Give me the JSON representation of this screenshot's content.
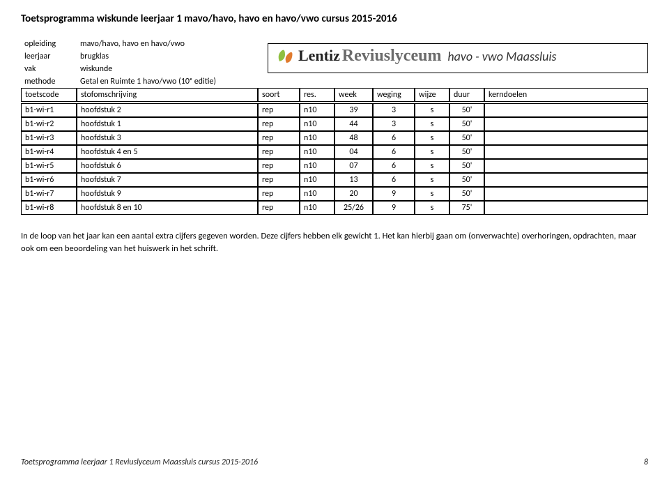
{
  "doc_title": "Toetsprogramma wiskunde leerjaar 1 mavo/havo, havo en havo/vwo cursus 2015-2016",
  "meta": {
    "opleiding_label": "opleiding",
    "opleiding_value": "mavo/havo, havo en havo/vwo",
    "leerjaar_label": "leerjaar",
    "leerjaar_value": "brugklas",
    "vak_label": "vak",
    "vak_value": "wiskunde",
    "methode_label": "methode",
    "methode_value": "Getal en Ruimte 1 havo/vwo (10ᵉ editie)"
  },
  "brand": {
    "word1": "Lentiz",
    "word2": "Reviuslyceum",
    "sub": "havo - vwo Maassluis"
  },
  "table": {
    "headers": {
      "toetscode": "toetscode",
      "stofomschrijving": "stofomschrijving",
      "soort": "soort",
      "res": "res.",
      "week": "week",
      "weging": "weging",
      "wijze": "wijze",
      "duur": "duur",
      "kerndoelen": "kerndoelen"
    },
    "rows": [
      {
        "code": "b1-wi-r1",
        "desc": "hoofdstuk 2",
        "soort": "rep",
        "res": "n10",
        "week": "39",
        "weging": "3",
        "wijze": "s",
        "duur": "50'",
        "kd": ""
      },
      {
        "code": "b1-wi-r2",
        "desc": "hoofdstuk 1",
        "soort": "rep",
        "res": "n10",
        "week": "44",
        "weging": "3",
        "wijze": "s",
        "duur": "50'",
        "kd": ""
      },
      {
        "code": "b1-wi-r3",
        "desc": "hoofdstuk 3",
        "soort": "rep",
        "res": "n10",
        "week": "48",
        "weging": "6",
        "wijze": "s",
        "duur": "50'",
        "kd": ""
      },
      {
        "code": "b1-wi-r4",
        "desc": "hoofdstuk 4 en 5",
        "soort": "rep",
        "res": "n10",
        "week": "04",
        "weging": "6",
        "wijze": "s",
        "duur": "50'",
        "kd": ""
      },
      {
        "code": "b1-wi-r5",
        "desc": "hoofdstuk 6",
        "soort": "rep",
        "res": "n10",
        "week": "07",
        "weging": "6",
        "wijze": "s",
        "duur": "50'",
        "kd": ""
      },
      {
        "code": "b1-wi-r6",
        "desc": "hoofdstuk 7",
        "soort": "rep",
        "res": "n10",
        "week": "13",
        "weging": "6",
        "wijze": "s",
        "duur": "50'",
        "kd": ""
      },
      {
        "code": "b1-wi-r7",
        "desc": "hoofdstuk 9",
        "soort": "rep",
        "res": "n10",
        "week": "20",
        "weging": "9",
        "wijze": "s",
        "duur": "50'",
        "kd": ""
      },
      {
        "code": "b1-wi-r8",
        "desc": "hoofdstuk 8 en 10",
        "soort": "rep",
        "res": "n10",
        "week": "25/26",
        "weging": "9",
        "wijze": "s",
        "duur": "75'",
        "kd": ""
      }
    ]
  },
  "note": "In de loop van het jaar kan een aantal extra cijfers gegeven worden. Deze cijfers hebben elk gewicht 1. Het kan hierbij gaan om (onverwachte) overhoringen, opdrachten, maar ook om een beoordeling van het huiswerk in het schrift.",
  "footer": {
    "left": "Toetsprogramma leerjaar 1 Reviuslyceum Maassluis cursus 2015-2016",
    "page": "8"
  },
  "colors": {
    "text": "#000000",
    "brand_grey": "#6b6b6b",
    "leaf_green": "#8fbf3f",
    "leaf_orange": "#e07b2e"
  }
}
